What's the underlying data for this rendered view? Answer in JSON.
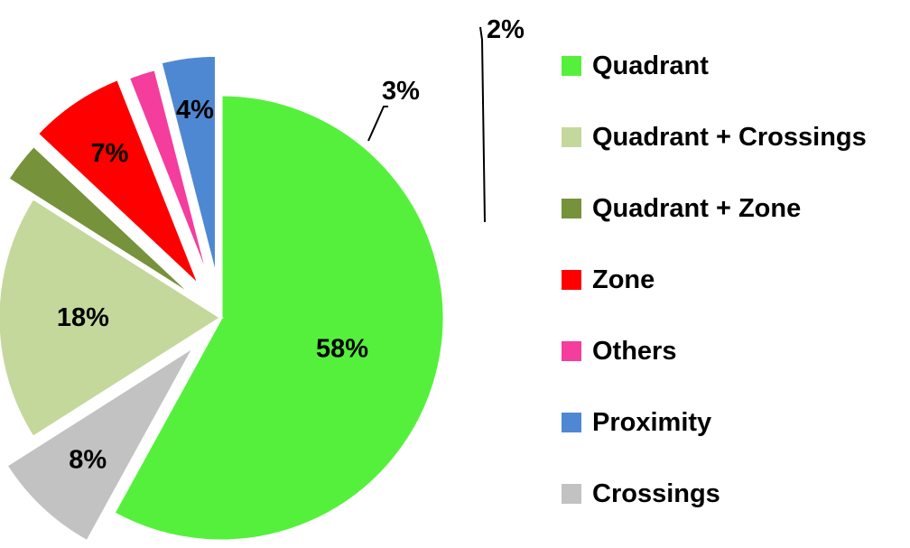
{
  "chart_data": {
    "type": "pie",
    "title": "",
    "legend_position": "right",
    "slices": [
      {
        "name": "Quadrant",
        "value": 58,
        "label": "58%",
        "color": "#55f03c"
      },
      {
        "name": "Crossings",
        "value": 8,
        "label": "8%",
        "color": "#c2c2c2"
      },
      {
        "name": "Quadrant + Crossings",
        "value": 18,
        "label": "18%",
        "color": "#c4d89b"
      },
      {
        "name": "Quadrant + Zone",
        "value": 3,
        "label": "3%",
        "color": "#76923b"
      },
      {
        "name": "Zone",
        "value": 7,
        "label": "7%",
        "color": "#ff0000"
      },
      {
        "name": "Others",
        "value": 2,
        "label": "2%",
        "color": "#f43d9c"
      },
      {
        "name": "Proximity",
        "value": 4,
        "label": "4%",
        "color": "#4f88d2"
      }
    ],
    "legend": [
      {
        "label": "Quadrant",
        "color": "#55f03c"
      },
      {
        "label": "Quadrant + Crossings",
        "color": "#c4d89b"
      },
      {
        "label": "Quadrant + Zone",
        "color": "#76923b"
      },
      {
        "label": "Zone",
        "color": "#ff0000"
      },
      {
        "label": "Others",
        "color": "#f43d9c"
      },
      {
        "label": "Proximity",
        "color": "#4f88d2"
      },
      {
        "label": "Crossings",
        "color": "#c2c2c2"
      }
    ]
  }
}
